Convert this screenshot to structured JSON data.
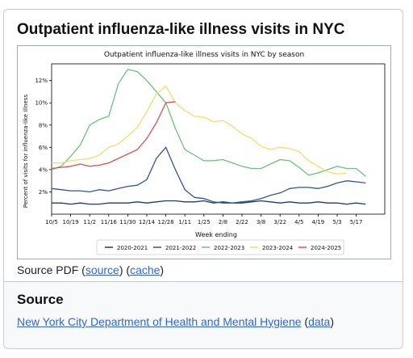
{
  "card": {
    "title": "Outpatient influenza-like illness visits in NYC"
  },
  "caption": {
    "prefix": "Source PDF (",
    "source_link": "source",
    "middle": ") (",
    "cache_link": "cache",
    "suffix": ")"
  },
  "source_section": {
    "heading": "Source",
    "org_link": "New York City Department of Health and Mental Hygiene",
    "open": " (",
    "data_link": "data",
    "close": ")"
  },
  "colors": {
    "2020-2021": "#1f3b6e",
    "2021-2022": "#2f5597",
    "2022-2023": "#6cc07a",
    "2023-2024": "#f2dc6b",
    "2024-2025": "#d9534f"
  },
  "chart_data": {
    "type": "line",
    "title": "Outpatient influenza-like illness visits in NYC by season",
    "xlabel": "Week ending",
    "ylabel": "Percent of visits for influenza-like illness",
    "x_ticks": [
      "10/5",
      "10/19",
      "11/2",
      "11/16",
      "11/30",
      "12/14",
      "12/28",
      "1/11",
      "1/25",
      "2/8",
      "2/22",
      "3/8",
      "3/22",
      "4/5",
      "4/19",
      "5/3",
      "5/17"
    ],
    "y_ticks": [
      "2%",
      "4%",
      "6%",
      "8%",
      "10%",
      "12%"
    ],
    "ylim": [
      0,
      13.5
    ],
    "legend": "bottom",
    "grid": false,
    "series": [
      {
        "name": "2020-2021",
        "values": [
          1.0,
          1.0,
          0.9,
          1.0,
          0.9,
          0.9,
          1.0,
          1.0,
          1.0,
          1.1,
          1.0,
          1.1,
          1.2,
          1.2,
          1.1,
          1.1,
          1.2,
          1.0,
          1.1,
          1.0,
          1.0,
          1.1,
          1.2,
          1.1,
          1.0,
          1.1,
          1.0,
          1.0,
          1.1,
          1.0,
          1.0,
          0.9,
          1.0,
          0.9
        ]
      },
      {
        "name": "2021-2022",
        "values": [
          2.3,
          2.2,
          2.1,
          2.1,
          2.0,
          2.2,
          2.1,
          2.3,
          2.5,
          2.6,
          3.1,
          5.0,
          6.0,
          4.0,
          2.2,
          1.5,
          1.4,
          1.1,
          1.0,
          1.0,
          1.1,
          1.2,
          1.4,
          1.7,
          1.9,
          2.3,
          2.4,
          2.4,
          2.3,
          2.5,
          2.8,
          3.0,
          2.9,
          2.8
        ]
      },
      {
        "name": "2022-2023",
        "values": [
          4.0,
          4.3,
          5.2,
          6.2,
          8.0,
          8.5,
          8.8,
          11.7,
          13.0,
          12.8,
          12.0,
          11.0,
          10.0,
          7.7,
          5.8,
          5.3,
          4.8,
          4.8,
          4.9,
          4.6,
          4.3,
          4.1,
          4.1,
          4.5,
          4.9,
          4.8,
          4.2,
          3.5,
          3.7,
          4.0,
          4.3,
          4.1,
          4.1,
          3.4
        ]
      },
      {
        "name": "2023-2024",
        "values": [
          4.6,
          4.6,
          4.8,
          4.9,
          5.0,
          5.3,
          6.0,
          6.3,
          7.0,
          7.8,
          9.2,
          10.8,
          11.5,
          10.0,
          9.3,
          8.8,
          8.7,
          8.3,
          8.4,
          7.9,
          7.2,
          6.8,
          6.1,
          5.8,
          6.0,
          5.9,
          5.6,
          4.8,
          4.3,
          3.8,
          3.6,
          3.7
        ]
      },
      {
        "name": "2024-2025",
        "values": [
          4.1,
          4.2,
          4.3,
          4.5,
          4.3,
          4.4,
          4.6,
          5.0,
          5.4,
          5.8,
          6.8,
          8.2,
          10.0,
          10.1
        ]
      }
    ]
  }
}
